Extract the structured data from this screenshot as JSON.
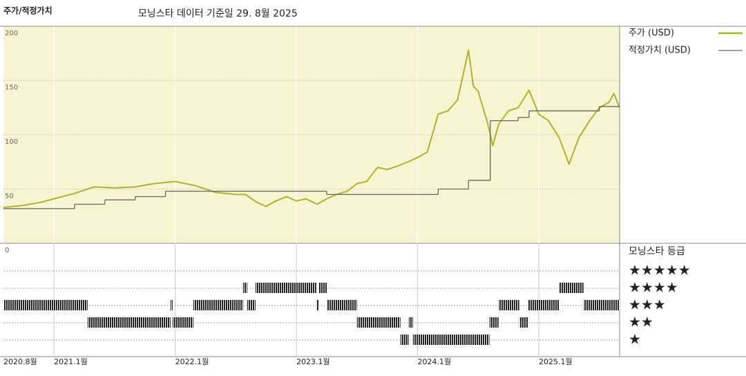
{
  "chart_data": {
    "type": "line",
    "title": "주가/적정가치",
    "subtitle": "모닝스타 데이터 기준일 29. 8월 2025",
    "xlim": [
      2020.583,
      2025.667
    ],
    "xticks": [
      {
        "value": 2020.583,
        "label": "2020.8월"
      },
      {
        "value": 2021.0,
        "label": "2021.1월"
      },
      {
        "value": 2022.0,
        "label": "2022.1월"
      },
      {
        "value": 2023.0,
        "label": "2023.1월"
      },
      {
        "value": 2024.0,
        "label": "2024.1월"
      },
      {
        "value": 2025.0,
        "label": "2025.1월"
      }
    ],
    "ylim": [
      0,
      200
    ],
    "yticks": [
      0,
      50,
      100,
      150,
      200
    ],
    "grid": true,
    "background": "#f8f4d2",
    "series": [
      {
        "name": "주가 (USD)",
        "color": "#a9b52c",
        "step": false,
        "x": [
          2020.583,
          2020.75,
          2020.9,
          2021.0,
          2021.17,
          2021.33,
          2021.5,
          2021.67,
          2021.83,
          2022.0,
          2022.17,
          2022.33,
          2022.5,
          2022.58,
          2022.67,
          2022.75,
          2022.83,
          2022.92,
          2023.0,
          2023.08,
          2023.17,
          2023.25,
          2023.33,
          2023.42,
          2023.5,
          2023.58,
          2023.67,
          2023.75,
          2023.83,
          2023.92,
          2024.0,
          2024.08,
          2024.17,
          2024.25,
          2024.33,
          2024.42,
          2024.46,
          2024.5,
          2024.58,
          2024.62,
          2024.67,
          2024.75,
          2024.83,
          2024.92,
          2025.0,
          2025.08,
          2025.17,
          2025.25,
          2025.33,
          2025.42,
          2025.5,
          2025.58,
          2025.62,
          2025.667
        ],
        "values": [
          33,
          35,
          38,
          41,
          46,
          52,
          51,
          52,
          55,
          57,
          53,
          47,
          45,
          45,
          38,
          34,
          39,
          43,
          39,
          41,
          36,
          41,
          45,
          48,
          55,
          57,
          70,
          68,
          71,
          75,
          79,
          84,
          119,
          122,
          132,
          178,
          145,
          140,
          110,
          90,
          110,
          122,
          125,
          141,
          119,
          113,
          97,
          73,
          97,
          113,
          125,
          130,
          138,
          125
        ]
      },
      {
        "name": "적정가치 (USD)",
        "color": "#666666",
        "step": true,
        "x": [
          2020.583,
          2021.17,
          2021.42,
          2021.67,
          2021.92,
          2023.25,
          2024.17,
          2024.42,
          2024.6,
          2024.83,
          2024.92,
          2025.5
        ],
        "values": [
          32,
          36,
          40,
          43,
          48,
          45,
          50,
          58,
          113,
          116,
          122,
          126
        ]
      }
    ],
    "rating": {
      "title": "모닝스타 등급",
      "levels": [
        5,
        4,
        3,
        2,
        1
      ],
      "labels": [
        "★★★★★",
        "★★★★",
        "★★★",
        "★★",
        "★"
      ],
      "start": [
        2020.583,
        2021.278,
        2021.962,
        2021.979,
        2022.15,
        2022.56,
        2022.594,
        2022.663,
        2023.164,
        2023.187,
        2023.25,
        2023.5,
        2023.859,
        2023.928,
        2023.962,
        2024.594,
        2024.668,
        2024.839,
        2024.913,
        2025.17,
        2025.369
      ],
      "end": [
        2021.278,
        2021.962,
        2021.979,
        2022.15,
        2022.56,
        2022.594,
        2022.663,
        2023.164,
        2023.187,
        2023.25,
        2023.5,
        2023.859,
        2023.928,
        2023.962,
        2024.594,
        2024.668,
        2024.839,
        2024.913,
        2025.17,
        2025.369,
        2025.667
      ],
      "stars": [
        3,
        2,
        3,
        2,
        3,
        4,
        3,
        4,
        3,
        4,
        3,
        2,
        1,
        2,
        1,
        2,
        3,
        2,
        3,
        4,
        3
      ]
    }
  }
}
